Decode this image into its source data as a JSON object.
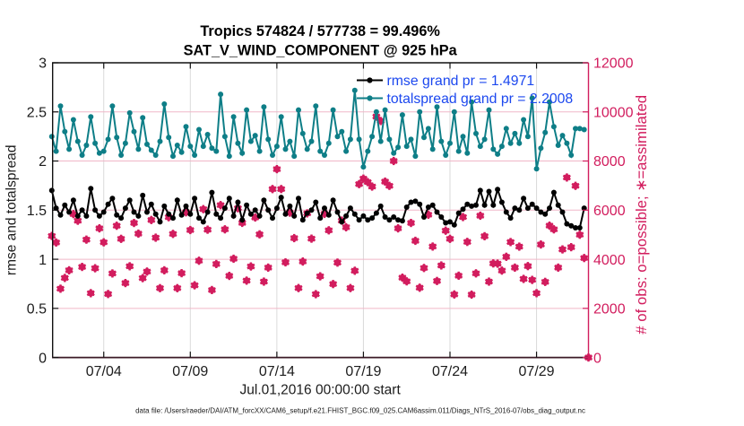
{
  "figure": {
    "title_line1": "Tropics 574824 / 577738 = 99.496%",
    "title_line2": "SAT_V_WIND_COMPONENT @ 925 hPa",
    "xlabel": "Jul.01,2016 00:00:00 start",
    "ylabel_left": "rmse and totalspread",
    "ylabel_right": "# of obs: o=possible; ∗=assimilated",
    "datafile_note": "data file: /Users/raeder/DAI/ATM_forcXX/CAM6_setup/f.e21.FHIST_BGC.f09_025.CAM6assim.011/Diags_NTrS_2016-07/obs_diag_output.nc"
  },
  "legend": {
    "entries": [
      {
        "label": "rmse grand pr = 1.4971",
        "series": "rmse"
      },
      {
        "label": "totalspread grand pr = 2.2008",
        "series": "totalspread"
      }
    ],
    "text_color": "#1c48ef"
  },
  "colors": {
    "rmse": "#000000",
    "totalspread": "#0e7e87",
    "obs": "#d21d5e",
    "grid_vertical": "#dadada",
    "grid_horizontal": "#f0b7c8",
    "axis_left_top": "#111111",
    "axis_bottom": "#3b1a26",
    "axis_right": "#d21d5e",
    "tick_label": "#1c1c1c",
    "background": "#ffffff"
  },
  "axes": {
    "x": {
      "tick_labels": [
        "07/04",
        "07/09",
        "07/14",
        "07/19",
        "07/24",
        "07/29"
      ],
      "tick_days": [
        3,
        8,
        13,
        18,
        23,
        28
      ],
      "range_days": [
        0,
        31
      ]
    },
    "y_left": {
      "ticks": [
        0,
        0.5,
        1,
        1.5,
        2,
        2.5,
        3
      ],
      "tick_labels": [
        "0",
        "0.5",
        "1",
        "1.5",
        "2",
        "2.5",
        "3"
      ],
      "range": [
        0,
        3
      ]
    },
    "y_right": {
      "ticks": [
        0,
        2000,
        4000,
        6000,
        8000,
        10000,
        12000
      ],
      "tick_labels": [
        "0",
        "2000",
        "4000",
        "6000",
        "8000",
        "10000",
        "12000"
      ],
      "range": [
        0,
        12000
      ]
    }
  },
  "chart_data": {
    "type": "line",
    "title": "Tropics 574824 / 577738 = 99.496%",
    "subtitle": "SAT_V_WIND_COMPONENT @ 925 hPa",
    "xlabel": "Jul.01,2016 00:00:00 start",
    "ylabel": "rmse and totalspread",
    "y2label": "# of obs: o=possible; ∗=assimilated",
    "x_time_step_hours": 6,
    "x_start": "2016-07-01 00:00:00",
    "x_tick_labels": [
      "07/04",
      "07/09",
      "07/14",
      "07/19",
      "07/24",
      "07/29"
    ],
    "ylim": [
      0,
      3
    ],
    "y2lim": [
      0,
      12000
    ],
    "grid": true,
    "legend_position": "top-right-inside",
    "series": [
      {
        "name": "rmse grand pr = 1.4971",
        "axis": "left",
        "color": "#000000",
        "marker": "filled-circle",
        "values": [
          1.7,
          1.52,
          1.45,
          1.55,
          1.48,
          1.6,
          1.44,
          1.5,
          1.44,
          1.72,
          1.5,
          1.44,
          1.48,
          1.56,
          1.62,
          1.45,
          1.42,
          1.52,
          1.6,
          1.48,
          1.44,
          1.65,
          1.48,
          1.56,
          1.46,
          1.38,
          1.54,
          1.46,
          1.42,
          1.6,
          1.45,
          1.54,
          1.46,
          1.62,
          1.42,
          1.38,
          1.48,
          1.68,
          1.46,
          1.42,
          1.52,
          1.62,
          1.44,
          1.58,
          1.4,
          1.55,
          1.46,
          1.5,
          1.44,
          1.6,
          1.5,
          1.42,
          1.52,
          1.63,
          1.46,
          1.54,
          1.44,
          1.62,
          1.4,
          1.47,
          1.5,
          1.58,
          1.42,
          1.52,
          1.45,
          1.6,
          1.48,
          1.38,
          1.44,
          1.52,
          1.46,
          1.4,
          1.44,
          1.4,
          1.42,
          1.47,
          1.54,
          1.43,
          1.4,
          1.43,
          1.4,
          1.39,
          1.53,
          1.58,
          1.59,
          1.56,
          1.43,
          1.53,
          1.55,
          1.48,
          1.43,
          1.37,
          1.38,
          1.35,
          1.47,
          1.51,
          1.56,
          1.54,
          1.55,
          1.7,
          1.55,
          1.69,
          1.55,
          1.71,
          1.58,
          1.48,
          1.42,
          1.52,
          1.5,
          1.62,
          1.52,
          1.56,
          1.52,
          1.48,
          1.46,
          1.52,
          1.68,
          1.55,
          1.48,
          1.36,
          1.34,
          1.32,
          1.32,
          1.52
        ]
      },
      {
        "name": "totalspread grand pr = 2.2008",
        "axis": "left",
        "color": "#0e7e87",
        "marker": "filled-circle",
        "values": [
          2.25,
          2.1,
          2.56,
          2.3,
          2.12,
          2.42,
          2.2,
          2.06,
          2.16,
          2.45,
          2.18,
          2.08,
          2.1,
          2.22,
          2.56,
          2.24,
          2.06,
          2.18,
          2.49,
          2.3,
          2.12,
          2.44,
          2.17,
          2.11,
          2.06,
          2.2,
          2.58,
          2.24,
          2.05,
          2.16,
          2.09,
          2.35,
          2.15,
          2.06,
          2.32,
          2.15,
          2.27,
          2.13,
          2.1,
          2.68,
          2.25,
          2.05,
          2.45,
          2.18,
          2.08,
          2.52,
          2.2,
          2.26,
          2.1,
          2.55,
          2.22,
          2.06,
          2.15,
          2.45,
          2.12,
          2.2,
          2.05,
          2.52,
          2.28,
          2.12,
          2.2,
          2.56,
          2.1,
          2.06,
          2.18,
          2.52,
          2.25,
          2.3,
          2.1,
          2.22,
          2.72,
          2.22,
          1.94,
          2.1,
          2.25,
          2.5,
          2.2,
          2.52,
          2.22,
          2.08,
          2.14,
          2.47,
          2.15,
          2.22,
          2.05,
          2.5,
          2.24,
          2.33,
          2.12,
          2.55,
          2.2,
          2.06,
          2.18,
          2.5,
          2.1,
          2.25,
          2.08,
          2.6,
          2.28,
          2.15,
          2.22,
          2.52,
          2.12,
          2.07,
          2.15,
          2.33,
          2.18,
          2.28,
          2.18,
          2.42,
          2.25,
          2.64,
          1.92,
          2.13,
          2.29,
          2.6,
          2.35,
          2.16,
          2.26,
          2.18,
          2.06,
          2.33,
          2.33,
          2.32
        ]
      },
      {
        "name": "# of obs possible/assimilated",
        "axis": "right",
        "color": "#d21d5e",
        "marker": "circle+asterisk",
        "values": [
          4950,
          4680,
          2800,
          3240,
          3550,
          5840,
          5570,
          3690,
          4800,
          2620,
          3634,
          5259,
          4690,
          2584,
          3422,
          5364,
          4831,
          3032,
          3714,
          5476,
          5042,
          3233,
          3500,
          5600,
          4878,
          2822,
          3548,
          5711,
          5034,
          2822,
          3433,
          5912,
          5189,
          2941,
          3942,
          6040,
          5205,
          2745,
          3807,
          6206,
          5217,
          3323,
          4021,
          6078,
          5481,
          3131,
          3705,
          5700,
          5013,
          3091,
          3659,
          6860,
          7670,
          6860,
          3873,
          5896,
          4861,
          2828,
          3909,
          5870,
          4840,
          2580,
          3304,
          5847,
          5178,
          2990,
          3862,
          5573,
          5303,
          2825,
          3530,
          7060,
          7280,
          7140,
          6960,
          9810,
          9630,
          7160,
          6990,
          8000,
          5260,
          3250,
          3100,
          5479,
          4751,
          2841,
          3644,
          5812,
          4517,
          3114,
          3748,
          5164,
          4833,
          2568,
          3329,
          5719,
          4709,
          2560,
          3425,
          5772,
          4939,
          3091,
          3830,
          3820,
          3540,
          4100,
          4700,
          3660,
          4515,
          3200,
          3720,
          3160,
          2620,
          4600,
          3080,
          5370,
          5220,
          3660,
          4400,
          7330,
          4490,
          6990,
          5000,
          4050,
          0
        ]
      }
    ]
  }
}
